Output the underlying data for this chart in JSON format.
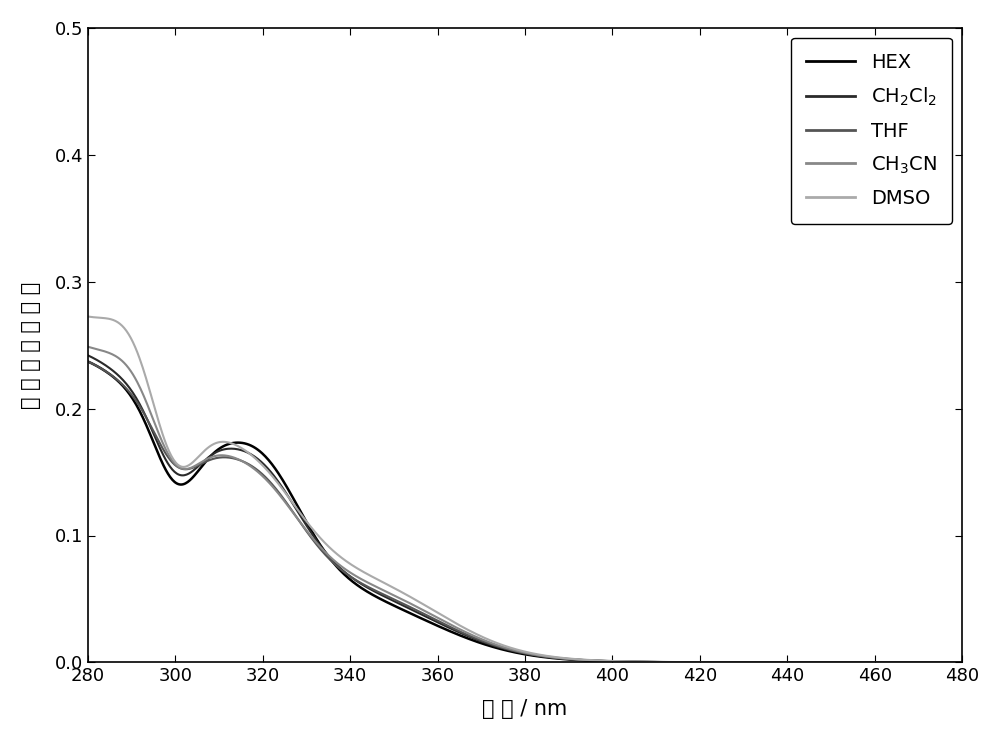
{
  "title": "",
  "xlabel": "波 长 / nm",
  "ylabel": "归 一 化 吸 收 强 度",
  "xlim": [
    280,
    480
  ],
  "ylim": [
    0.0,
    0.5
  ],
  "xticks": [
    280,
    300,
    320,
    340,
    360,
    380,
    400,
    420,
    440,
    460,
    480
  ],
  "yticks": [
    0.0,
    0.1,
    0.2,
    0.3,
    0.4,
    0.5
  ],
  "background_color": "#ffffff",
  "series": [
    {
      "name": "HEX",
      "color": "#000000",
      "linewidth": 1.8,
      "linestyle": "solid"
    },
    {
      "name": "CH$_2$Cl$_2$",
      "color": "#2a2a2a",
      "linewidth": 1.5,
      "linestyle": "solid"
    },
    {
      "name": "THF",
      "color": "#555555",
      "linewidth": 1.5,
      "linestyle": "solid"
    },
    {
      "name": "CH$_3$CN",
      "color": "#888888",
      "linewidth": 1.5,
      "linestyle": "solid"
    },
    {
      "name": "DMSO",
      "color": "#aaaaaa",
      "linewidth": 1.5,
      "linestyle": "solid"
    }
  ]
}
